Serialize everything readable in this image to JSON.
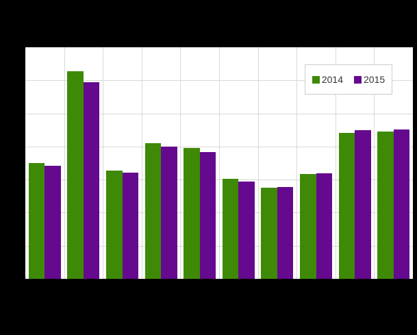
{
  "chart": {
    "background_color": "#000000",
    "plot_background_color": "#ffffff",
    "gridline_color": "#d8d8d8",
    "legend_border_color": "#cccccc",
    "legend_text_color": "#333333"
  },
  "chart_data": {
    "type": "bar",
    "title": "",
    "xlabel": "",
    "ylabel": "",
    "categories": [
      "",
      "",
      "",
      "",
      "",
      "",
      "",
      "",
      "",
      ""
    ],
    "series": [
      {
        "name": "2014",
        "color": "#3e8a06",
        "values": [
          3.5,
          6.27,
          3.27,
          4.1,
          3.95,
          3.02,
          2.75,
          3.17,
          4.41,
          4.45
        ]
      },
      {
        "name": "2015",
        "color": "#65098e",
        "values": [
          3.42,
          5.94,
          3.21,
          4.0,
          3.83,
          2.94,
          2.77,
          3.19,
          4.49,
          4.51
        ]
      }
    ],
    "ylim": [
      0,
      7
    ],
    "gridline_step": 1,
    "grid": true,
    "legend_position": "top-right",
    "axis_tick_labels_visible": false
  }
}
